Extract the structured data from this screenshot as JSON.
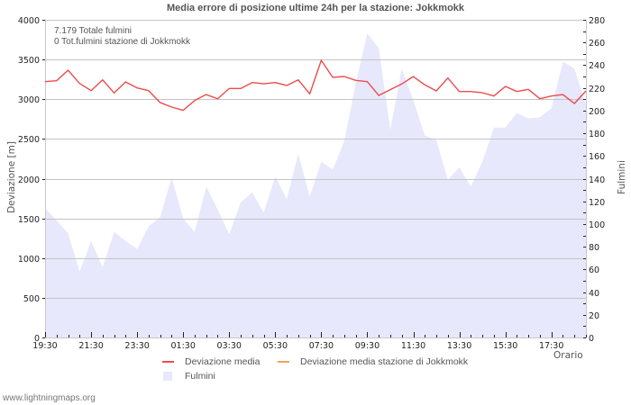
{
  "chart_data": {
    "type": "line",
    "title": "Media errore di posizione ultime 24h per la stazione: Jokkmokk",
    "annotations": [
      "7.179 Totale fulmini",
      "0 Tot.fulmini stazione di Jokkmokk"
    ],
    "xlabel": "Orario",
    "ylabel": "Deviazione  [m]",
    "y2label": "Fulmini",
    "ylim": [
      0,
      4000
    ],
    "y2lim": [
      0,
      280
    ],
    "yticks": [
      0,
      500,
      1000,
      1500,
      2000,
      2500,
      3000,
      3500,
      4000
    ],
    "y2ticks": [
      0,
      20,
      40,
      60,
      80,
      100,
      120,
      140,
      160,
      180,
      200,
      220,
      240,
      260,
      280
    ],
    "xtick_labels": [
      "19:30",
      "21:30",
      "23:30",
      "01:30",
      "03:30",
      "05:30",
      "07:30",
      "09:30",
      "11:30",
      "13:30",
      "15:30",
      "17:30"
    ],
    "grid": true,
    "legend_position": "bottom",
    "categories": [
      "19:30",
      "20:00",
      "20:30",
      "21:00",
      "21:30",
      "22:00",
      "22:30",
      "23:00",
      "23:30",
      "00:00",
      "00:30",
      "01:00",
      "01:30",
      "02:00",
      "02:30",
      "03:00",
      "03:30",
      "04:00",
      "04:30",
      "05:00",
      "05:30",
      "06:00",
      "06:30",
      "07:00",
      "07:30",
      "08:00",
      "08:30",
      "09:00",
      "09:30",
      "10:00",
      "10:30",
      "11:00",
      "11:30",
      "12:00",
      "12:30",
      "13:00",
      "13:30",
      "14:00",
      "14:30",
      "15:00",
      "15:30",
      "16:00",
      "16:30",
      "17:00",
      "17:30",
      "18:00",
      "18:30",
      "19:00"
    ],
    "series": [
      {
        "name": "Deviazione media",
        "axis": "left",
        "type": "line",
        "color": "#ee4b4b",
        "values": [
          3222,
          3233,
          3365,
          3199,
          3108,
          3244,
          3079,
          3218,
          3142,
          3108,
          2958,
          2901,
          2860,
          2984,
          3059,
          3006,
          3135,
          3135,
          3210,
          3195,
          3210,
          3173,
          3244,
          3067,
          3490,
          3275,
          3286,
          3237,
          3222,
          3048,
          3120,
          3192,
          3286,
          3181,
          3105,
          3267,
          3097,
          3097,
          3082,
          3040,
          3161,
          3097,
          3124,
          3006,
          3040,
          3059,
          2946,
          3105
        ]
      },
      {
        "name": "Deviazione media stazione di Jokkmokk",
        "axis": "left",
        "type": "line",
        "color": "#f5a05c",
        "values": []
      },
      {
        "name": "Fulmini",
        "axis": "right",
        "type": "area",
        "color": "#e8e8fc",
        "values": [
          114,
          103,
          92,
          58,
          85,
          62,
          93,
          85,
          78,
          98,
          106,
          141,
          105,
          93,
          133,
          113,
          91,
          119,
          128,
          110,
          142,
          122,
          162,
          124,
          155,
          148,
          173,
          224,
          268,
          255,
          183,
          237,
          209,
          178,
          174,
          139,
          150,
          133,
          155,
          185,
          185,
          198,
          193,
          194,
          202,
          243,
          237,
          205
        ]
      }
    ],
    "legend": [
      {
        "label": "Deviazione media",
        "color": "#ee4b4b",
        "kind": "line"
      },
      {
        "label": "Deviazione media stazione di Jokkmokk",
        "color": "#f5a05c",
        "kind": "line"
      },
      {
        "label": "Fulmini",
        "color": "#e8e8fc",
        "kind": "area"
      }
    ]
  },
  "footer": "www.lightningmaps.org"
}
